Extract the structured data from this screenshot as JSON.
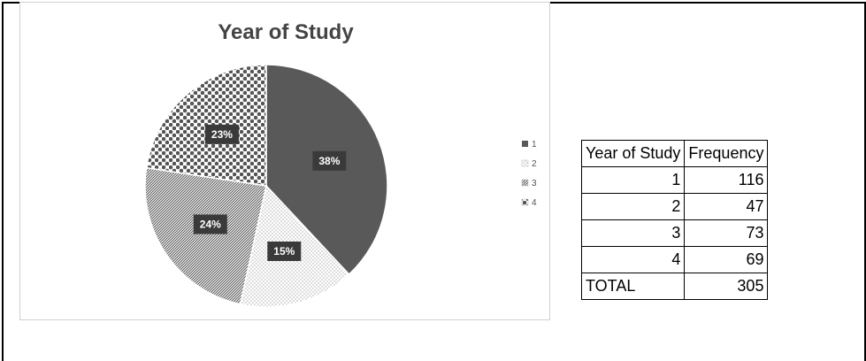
{
  "chart_data": {
    "type": "pie",
    "title": "Year of Study",
    "categories": [
      "1",
      "2",
      "3",
      "4"
    ],
    "values": [
      116,
      47,
      73,
      69
    ],
    "percent_labels": [
      "38%",
      "15%",
      "24%",
      "23%"
    ],
    "legend_position": "right",
    "colors": [
      "#595959",
      "#ffffff",
      "#ffffff",
      "#ffffff"
    ],
    "patterns": [
      "solid",
      "dots",
      "diagonal-dense",
      "large-dots"
    ]
  },
  "table": {
    "headers": [
      "Year of Study",
      "Frequency"
    ],
    "rows": [
      {
        "year": "1",
        "freq": "116"
      },
      {
        "year": "2",
        "freq": "47"
      },
      {
        "year": "3",
        "freq": "73"
      },
      {
        "year": "4",
        "freq": "69"
      }
    ],
    "total": {
      "label": "TOTAL",
      "value": "305"
    }
  }
}
